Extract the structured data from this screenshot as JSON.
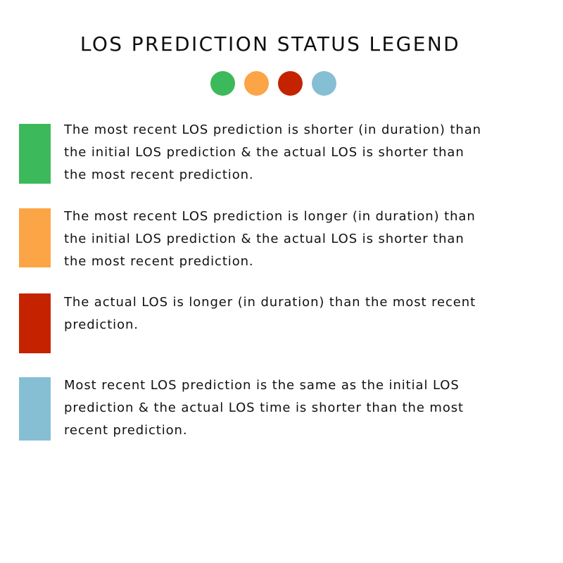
{
  "title": "LOS PREDICTION STATUS LEGEND",
  "colors": {
    "green": "#3cb95a",
    "orange": "#fba547",
    "red": "#c52300",
    "blue": "#86bfd3"
  },
  "dots": [
    {
      "color": "#3cb95a"
    },
    {
      "color": "#fba547"
    },
    {
      "color": "#c52300"
    },
    {
      "color": "#86bfd3"
    }
  ],
  "legend": [
    {
      "color": "#3cb95a",
      "lines": [
        "The most recent LOS prediction is shorter (in duration) than",
        "the initial LOS prediction & the actual LOS is shorter than",
        "the most recent prediction."
      ]
    },
    {
      "color": "#fba547",
      "lines": [
        "The most recent LOS prediction is longer (in duration) than",
        "the initial LOS prediction & the actual LOS is shorter than",
        "the most recent prediction."
      ]
    },
    {
      "color": "#c52300",
      "lines": [
        "The actual LOS is longer (in duration) than the most recent",
        "prediction."
      ]
    },
    {
      "color": "#86bfd3",
      "lines": [
        "Most recent LOS prediction is the same as the initial LOS",
        "prediction & the actual LOS time is shorter than the most",
        "recent prediction."
      ]
    }
  ]
}
